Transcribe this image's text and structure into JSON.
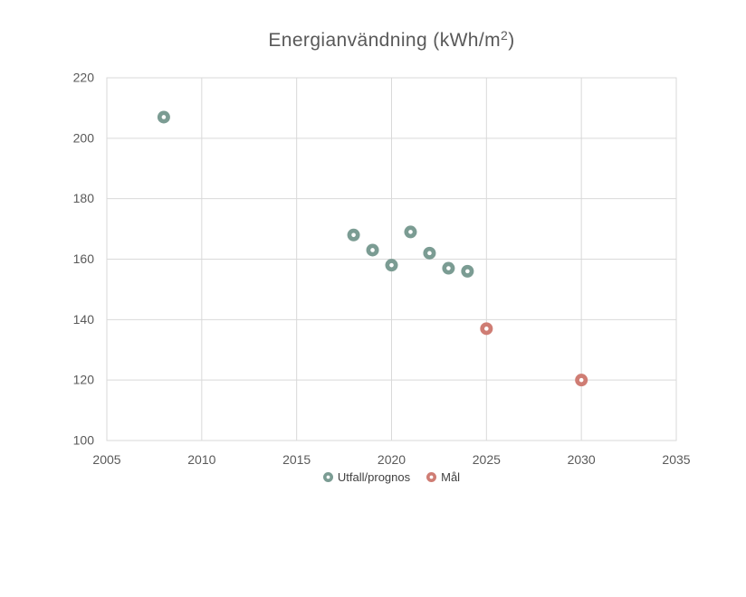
{
  "title": {
    "main": "Energianvändning (kWh/m",
    "sup": "2",
    "suffix": ")"
  },
  "chart_data": {
    "type": "scatter",
    "title": "Energianvändning (kWh/m²)",
    "xlabel": "",
    "ylabel": "",
    "x_axis": {
      "min": 2005,
      "max": 2035,
      "step": 5,
      "ticks": [
        2005,
        2010,
        2015,
        2020,
        2025,
        2030,
        2035
      ]
    },
    "y_axis": {
      "min": 100,
      "max": 220,
      "step": 20,
      "ticks": [
        100,
        120,
        140,
        160,
        180,
        200,
        220
      ]
    },
    "grid": true,
    "legend_position": "bottom-center",
    "series": [
      {
        "name": "Utfall/prognos",
        "color": "#7B9C93",
        "points": [
          {
            "x": 2008,
            "y": 207
          },
          {
            "x": 2018,
            "y": 168
          },
          {
            "x": 2019,
            "y": 163
          },
          {
            "x": 2020,
            "y": 158
          },
          {
            "x": 2021,
            "y": 169
          },
          {
            "x": 2022,
            "y": 162
          },
          {
            "x": 2023,
            "y": 157
          },
          {
            "x": 2024,
            "y": 156
          }
        ]
      },
      {
        "name": "Mål",
        "color": "#CF7D74",
        "points": [
          {
            "x": 2025,
            "y": 137
          },
          {
            "x": 2030,
            "y": 120
          }
        ]
      }
    ],
    "colors": {
      "grid": "#D9D9D9",
      "tick_text": "#595959",
      "title_text": "#595959",
      "legend_text": "#404040",
      "marker_hole": "#FFFFFF"
    }
  }
}
